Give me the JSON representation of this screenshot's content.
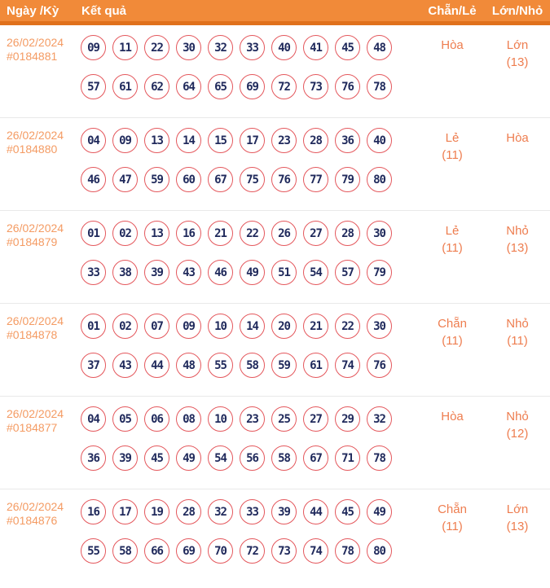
{
  "header": {
    "col_date": "Ngày /Kỳ",
    "col_result": "Kết quả",
    "col_chan_le": "Chẵn/Lẻ",
    "col_lon_nho": "Lớn/Nhỏ"
  },
  "colors": {
    "header_bg": "#F18A39",
    "header_border": "#E0711C",
    "date_text": "#F49B63",
    "ball_border": "#E4575C",
    "ball_text": "#202A5C",
    "stat_text": "#EE7D4F",
    "row_separator": "#E9E9E9"
  },
  "rows": [
    {
      "date": "26/02/2024",
      "draw_id": "#0184881",
      "numbers_line1": [
        "09",
        "11",
        "22",
        "30",
        "32",
        "33",
        "40",
        "41",
        "45",
        "48"
      ],
      "numbers_line2": [
        "57",
        "61",
        "62",
        "64",
        "65",
        "69",
        "72",
        "73",
        "76",
        "78"
      ],
      "chan_le_value": "Hòa",
      "chan_le_count": "",
      "lon_nho_value": "Lớn",
      "lon_nho_count": "(13)"
    },
    {
      "date": "26/02/2024",
      "draw_id": "#0184880",
      "numbers_line1": [
        "04",
        "09",
        "13",
        "14",
        "15",
        "17",
        "23",
        "28",
        "36",
        "40"
      ],
      "numbers_line2": [
        "46",
        "47",
        "59",
        "60",
        "67",
        "75",
        "76",
        "77",
        "79",
        "80"
      ],
      "chan_le_value": "Lẻ",
      "chan_le_count": "(11)",
      "lon_nho_value": "Hòa",
      "lon_nho_count": ""
    },
    {
      "date": "26/02/2024",
      "draw_id": "#0184879",
      "numbers_line1": [
        "01",
        "02",
        "13",
        "16",
        "21",
        "22",
        "26",
        "27",
        "28",
        "30"
      ],
      "numbers_line2": [
        "33",
        "38",
        "39",
        "43",
        "46",
        "49",
        "51",
        "54",
        "57",
        "79"
      ],
      "chan_le_value": "Lẻ",
      "chan_le_count": "(11)",
      "lon_nho_value": "Nhỏ",
      "lon_nho_count": "(13)"
    },
    {
      "date": "26/02/2024",
      "draw_id": "#0184878",
      "numbers_line1": [
        "01",
        "02",
        "07",
        "09",
        "10",
        "14",
        "20",
        "21",
        "22",
        "30"
      ],
      "numbers_line2": [
        "37",
        "43",
        "44",
        "48",
        "55",
        "58",
        "59",
        "61",
        "74",
        "76"
      ],
      "chan_le_value": "Chẵn",
      "chan_le_count": "(11)",
      "lon_nho_value": "Nhỏ",
      "lon_nho_count": "(11)"
    },
    {
      "date": "26/02/2024",
      "draw_id": "#0184877",
      "numbers_line1": [
        "04",
        "05",
        "06",
        "08",
        "10",
        "23",
        "25",
        "27",
        "29",
        "32"
      ],
      "numbers_line2": [
        "36",
        "39",
        "45",
        "49",
        "54",
        "56",
        "58",
        "67",
        "71",
        "78"
      ],
      "chan_le_value": "Hòa",
      "chan_le_count": "",
      "lon_nho_value": "Nhỏ",
      "lon_nho_count": "(12)"
    },
    {
      "date": "26/02/2024",
      "draw_id": "#0184876",
      "numbers_line1": [
        "16",
        "17",
        "19",
        "28",
        "32",
        "33",
        "39",
        "44",
        "45",
        "49"
      ],
      "numbers_line2": [
        "55",
        "58",
        "66",
        "69",
        "70",
        "72",
        "73",
        "74",
        "78",
        "80"
      ],
      "chan_le_value": "Chẵn",
      "chan_le_count": "(11)",
      "lon_nho_value": "Lớn",
      "lon_nho_count": "(13)"
    }
  ]
}
